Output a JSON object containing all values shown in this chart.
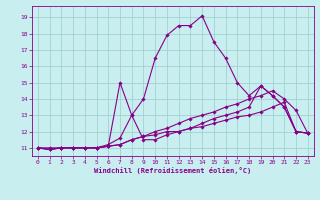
{
  "xlabel": "Windchill (Refroidissement éolien,°C)",
  "bg_color": "#c8eef0",
  "line_color": "#880088",
  "marker": "D",
  "marker_size": 1.8,
  "line_width": 0.8,
  "xlim": [
    -0.5,
    23.5
  ],
  "ylim": [
    10.5,
    19.7
  ],
  "xticks": [
    0,
    1,
    2,
    3,
    4,
    5,
    6,
    7,
    8,
    9,
    10,
    11,
    12,
    13,
    14,
    15,
    16,
    17,
    18,
    19,
    20,
    21,
    22,
    23
  ],
  "yticks": [
    11,
    12,
    13,
    14,
    15,
    16,
    17,
    18,
    19
  ],
  "grid_color": "#99cccc",
  "series": [
    [
      11.0,
      11.0,
      11.0,
      11.0,
      11.0,
      11.0,
      11.2,
      11.6,
      13.0,
      14.0,
      16.5,
      17.9,
      18.5,
      18.5,
      19.1,
      17.5,
      16.5,
      15.0,
      14.2,
      14.8,
      14.2,
      13.5,
      12.0,
      11.9
    ],
    [
      11.0,
      10.9,
      11.0,
      11.0,
      11.0,
      11.0,
      11.1,
      11.2,
      11.5,
      11.7,
      12.0,
      12.2,
      12.5,
      12.8,
      13.0,
      13.2,
      13.5,
      13.7,
      14.0,
      14.2,
      14.5,
      14.0,
      13.3,
      11.9
    ],
    [
      11.0,
      10.9,
      11.0,
      11.0,
      11.0,
      11.0,
      11.1,
      15.0,
      13.0,
      11.5,
      11.5,
      11.8,
      12.0,
      12.2,
      12.5,
      12.8,
      13.0,
      13.2,
      13.5,
      14.8,
      14.2,
      13.5,
      12.0,
      11.9
    ],
    [
      11.0,
      10.9,
      11.0,
      11.0,
      11.0,
      11.0,
      11.1,
      11.2,
      11.5,
      11.7,
      11.8,
      12.0,
      12.0,
      12.2,
      12.3,
      12.5,
      12.7,
      12.9,
      13.0,
      13.2,
      13.5,
      13.8,
      12.0,
      11.9
    ]
  ]
}
